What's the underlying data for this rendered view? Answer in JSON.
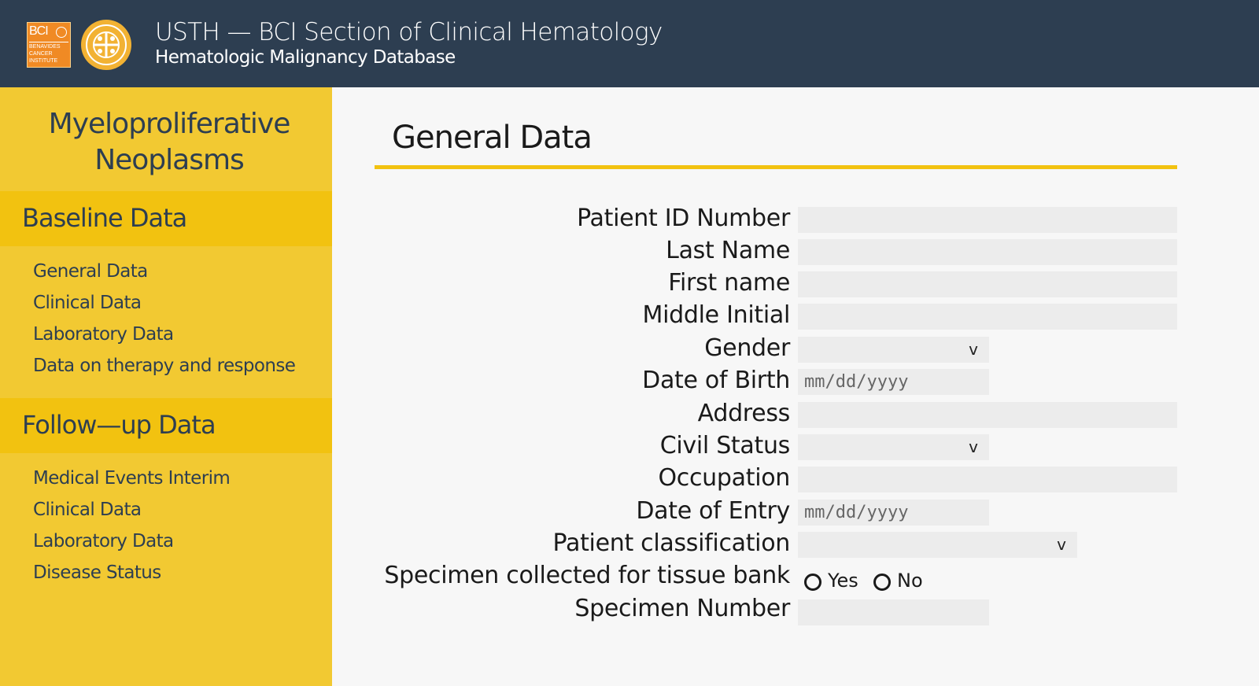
{
  "header": {
    "logo_bci_text": "BCI",
    "logo_bci_sub": "BENAVIDES CANCER INSTITUTE",
    "title": "USTH — BCI Section of Clinical Hematology",
    "subtitle": "Hematologic Malignancy Database",
    "bg_color": "#2d3e51"
  },
  "sidebar": {
    "title": "Myeloproliferative Neoplasms",
    "bg_color": "#f2c932",
    "section_color": "#f2c210",
    "sections": [
      {
        "label": "Baseline Data",
        "items": [
          {
            "label": "General Data"
          },
          {
            "label": "Clinical Data"
          },
          {
            "label": "Laboratory Data"
          },
          {
            "label": "Data on therapy and response"
          }
        ]
      },
      {
        "label": "Follow—up Data",
        "items": [
          {
            "label": "Medical Events Interim"
          },
          {
            "label": "Clinical Data"
          },
          {
            "label": "Laboratory Data"
          },
          {
            "label": "Disease Status"
          }
        ]
      }
    ]
  },
  "main": {
    "title": "General Data",
    "accent_color": "#f2c210",
    "fields": [
      {
        "label": "Patient ID Number",
        "type": "text",
        "value": ""
      },
      {
        "label": "Last Name",
        "type": "text",
        "value": ""
      },
      {
        "label": "First name",
        "type": "text",
        "value": ""
      },
      {
        "label": "Middle Initial",
        "type": "text",
        "value": ""
      },
      {
        "label": "Gender",
        "type": "select",
        "value": "",
        "chevron": "v"
      },
      {
        "label": "Date of Birth",
        "type": "date",
        "placeholder": "mm/dd/yyyy"
      },
      {
        "label": "Address",
        "type": "text",
        "value": ""
      },
      {
        "label": "Civil Status",
        "type": "select",
        "value": "",
        "chevron": "v"
      },
      {
        "label": "Occupation",
        "type": "text",
        "value": ""
      },
      {
        "label": "Date of Entry",
        "type": "date",
        "placeholder": "mm/dd/yyyy"
      },
      {
        "label": "Patient classification",
        "type": "select",
        "value": "",
        "chevron": "v"
      },
      {
        "label": "Specimen collected for tissue bank",
        "type": "radio",
        "options": [
          "Yes",
          "No"
        ]
      },
      {
        "label": "Specimen Number",
        "type": "text",
        "value": ""
      }
    ]
  }
}
